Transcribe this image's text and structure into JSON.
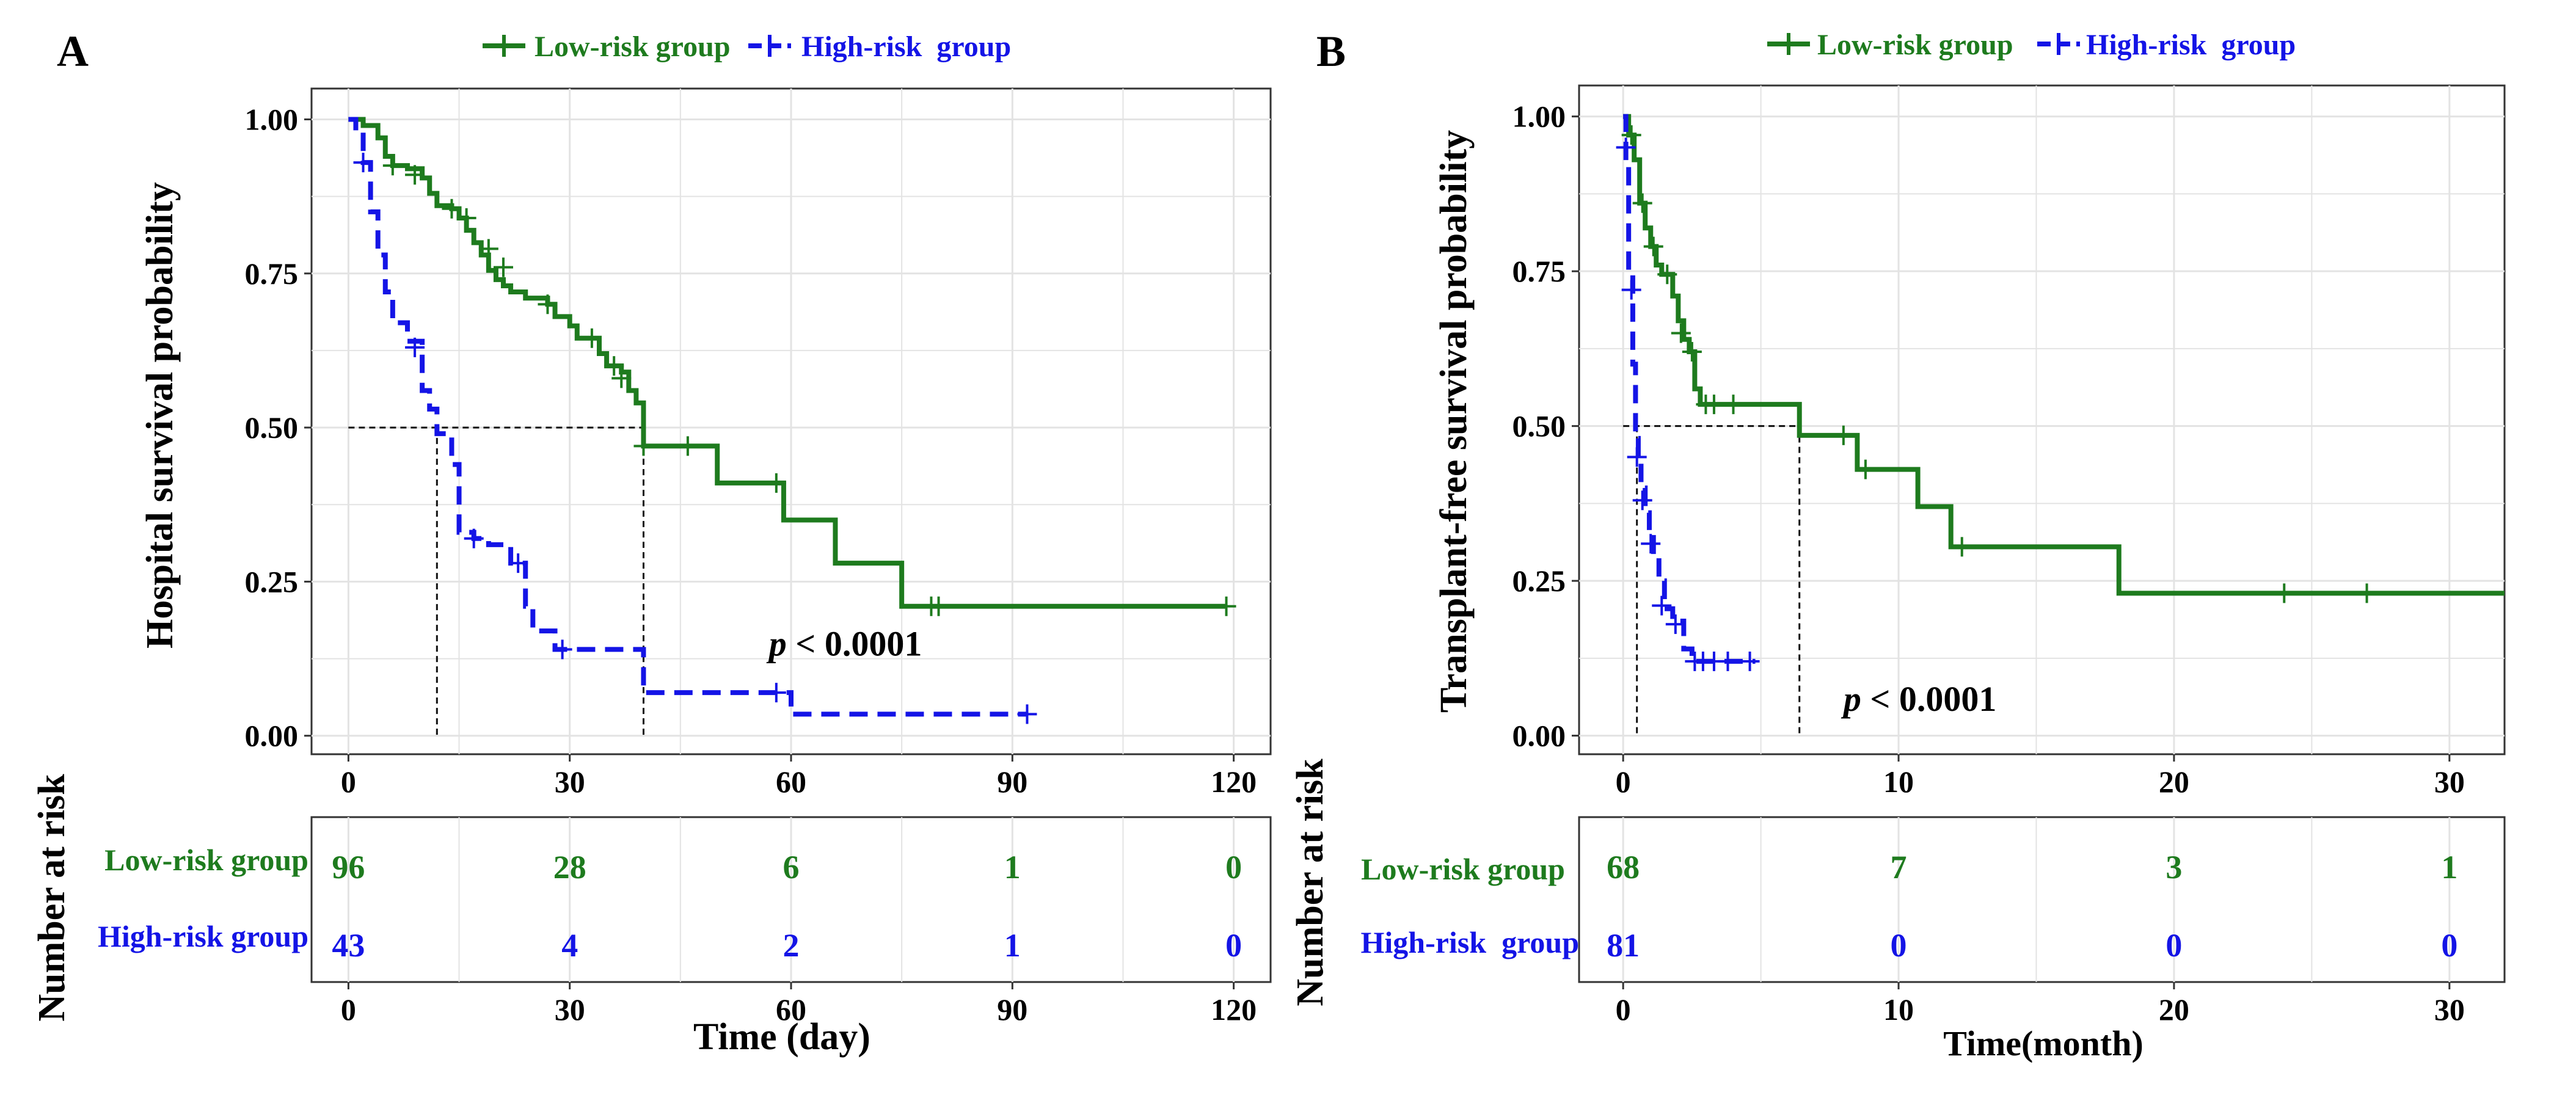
{
  "colors": {
    "low": "#1e7b1e",
    "high": "#1414e6",
    "grid": "#e3e3e3",
    "axis": "#333333",
    "ref": "#111111"
  },
  "chart_data": [
    {
      "type": "line",
      "panel_label": "A",
      "legend": [
        "Low-risk group",
        "High-risk  group"
      ],
      "ylabel": "Hospital survival probability",
      "xlabel": "Time (day)",
      "xlim": [
        -5,
        125
      ],
      "ylim": [
        -0.03,
        1.05
      ],
      "xticks": [
        0,
        30,
        60,
        90,
        120
      ],
      "yticks": [
        0.0,
        0.25,
        0.5,
        0.75,
        1.0
      ],
      "ytick_labels": [
        "0.00",
        "0.25",
        "0.50",
        "0.75",
        "1.00"
      ],
      "pvalue_prefix": "p",
      "pvalue_text": " < 0.0001",
      "pvalue_at": [
        57,
        0.13
      ],
      "medians": [
        12,
        40
      ],
      "series": [
        {
          "name": "Low-risk group",
          "style": "solid",
          "steps": [
            [
              0,
              1.0
            ],
            [
              2,
              0.99
            ],
            [
              4,
              0.97
            ],
            [
              5,
              0.94
            ],
            [
              6,
              0.925
            ],
            [
              8,
              0.92
            ],
            [
              10,
              0.905
            ],
            [
              11,
              0.88
            ],
            [
              12,
              0.86
            ],
            [
              14,
              0.855
            ],
            [
              15,
              0.84
            ],
            [
              16,
              0.82
            ],
            [
              17,
              0.8
            ],
            [
              18,
              0.78
            ],
            [
              19,
              0.755
            ],
            [
              20,
              0.74
            ],
            [
              21,
              0.73
            ],
            [
              22,
              0.72
            ],
            [
              24,
              0.71
            ],
            [
              27,
              0.7
            ],
            [
              28,
              0.68
            ],
            [
              30,
              0.665
            ],
            [
              31,
              0.645
            ],
            [
              33,
              0.645
            ],
            [
              34,
              0.62
            ],
            [
              35,
              0.6
            ],
            [
              37,
              0.59
            ],
            [
              38,
              0.56
            ],
            [
              39,
              0.54
            ],
            [
              40,
              0.47
            ],
            [
              50,
              0.41
            ],
            [
              59,
              0.35
            ],
            [
              66,
              0.28
            ],
            [
              75,
              0.21
            ],
            [
              119,
              0.21
            ]
          ],
          "censors": [
            [
              6,
              0.925
            ],
            [
              9,
              0.91
            ],
            [
              14,
              0.855
            ],
            [
              16,
              0.84
            ],
            [
              19,
              0.79
            ],
            [
              21,
              0.76
            ],
            [
              27,
              0.7
            ],
            [
              33,
              0.645
            ],
            [
              36,
              0.6
            ],
            [
              37,
              0.58
            ],
            [
              40,
              0.47
            ],
            [
              46,
              0.47
            ],
            [
              58,
              0.41
            ],
            [
              79,
              0.21
            ],
            [
              80,
              0.21
            ],
            [
              119,
              0.21
            ]
          ]
        },
        {
          "name": "High-risk  group",
          "style": "dashed",
          "steps": [
            [
              0,
              1.0
            ],
            [
              1,
              0.98
            ],
            [
              2,
              0.93
            ],
            [
              3,
              0.85
            ],
            [
              4,
              0.78
            ],
            [
              5,
              0.72
            ],
            [
              6,
              0.67
            ],
            [
              8,
              0.64
            ],
            [
              10,
              0.56
            ],
            [
              11,
              0.53
            ],
            [
              12,
              0.49
            ],
            [
              14,
              0.44
            ],
            [
              15,
              0.33
            ],
            [
              17,
              0.32
            ],
            [
              19,
              0.31
            ],
            [
              22,
              0.28
            ],
            [
              24,
              0.21
            ],
            [
              25,
              0.17
            ],
            [
              28,
              0.14
            ],
            [
              35,
              0.14
            ],
            [
              40,
              0.07
            ],
            [
              60,
              0.035
            ],
            [
              92,
              0.035
            ]
          ],
          "censors": [
            [
              2,
              0.93
            ],
            [
              9,
              0.63
            ],
            [
              17,
              0.32
            ],
            [
              23,
              0.28
            ],
            [
              29,
              0.14
            ],
            [
              58,
              0.07
            ],
            [
              92,
              0.035
            ]
          ]
        }
      ],
      "risk_table": {
        "title": "Number at risk",
        "xlabel": "Time (day)",
        "row_labels": [
          "Low-risk group",
          "High-risk group"
        ],
        "rows": [
          [
            96,
            28,
            6,
            1,
            0
          ],
          [
            43,
            4,
            2,
            1,
            0
          ]
        ],
        "times": [
          0,
          30,
          60,
          90,
          120
        ],
        "tick_labels": [
          "0",
          "30",
          "60",
          "90",
          "120"
        ]
      }
    },
    {
      "type": "line",
      "panel_label": "B",
      "legend": [
        "Low-risk group",
        "High-risk  group"
      ],
      "ylabel": "Transplant-free survival probability",
      "xlabel": "Time(month)",
      "xlim": [
        -1.6,
        32
      ],
      "ylim": [
        -0.03,
        1.05
      ],
      "xticks": [
        0,
        10,
        20,
        30
      ],
      "yticks": [
        0.0,
        0.25,
        0.5,
        0.75,
        1.0
      ],
      "ytick_labels": [
        "0.00",
        "0.25",
        "0.50",
        "0.75",
        "1.00"
      ],
      "pvalue_prefix": "p",
      "pvalue_text": " < 0.0001",
      "pvalue_at": [
        8.0,
        0.04
      ],
      "medians": [
        0.5,
        6.4
      ],
      "series": [
        {
          "name": "Low-risk group",
          "style": "solid",
          "steps": [
            [
              0,
              1.0
            ],
            [
              0.2,
              0.97
            ],
            [
              0.4,
              0.93
            ],
            [
              0.6,
              0.86
            ],
            [
              0.8,
              0.82
            ],
            [
              1.0,
              0.79
            ],
            [
              1.2,
              0.76
            ],
            [
              1.4,
              0.745
            ],
            [
              1.8,
              0.71
            ],
            [
              2.0,
              0.67
            ],
            [
              2.2,
              0.64
            ],
            [
              2.4,
              0.62
            ],
            [
              2.6,
              0.56
            ],
            [
              2.8,
              0.535
            ],
            [
              6.4,
              0.485
            ],
            [
              8.5,
              0.43
            ],
            [
              10.7,
              0.37
            ],
            [
              11.9,
              0.305
            ],
            [
              18.0,
              0.23
            ],
            [
              32,
              0.23
            ]
          ],
          "censors": [
            [
              0.3,
              0.97
            ],
            [
              0.7,
              0.86
            ],
            [
              1.1,
              0.79
            ],
            [
              1.6,
              0.745
            ],
            [
              2.1,
              0.65
            ],
            [
              2.5,
              0.62
            ],
            [
              3.0,
              0.535
            ],
            [
              3.3,
              0.535
            ],
            [
              4.0,
              0.535
            ],
            [
              8.0,
              0.485
            ],
            [
              8.8,
              0.43
            ],
            [
              12.3,
              0.305
            ],
            [
              24,
              0.23
            ],
            [
              27,
              0.23
            ]
          ]
        },
        {
          "name": "High-risk  group",
          "style": "dashed",
          "steps": [
            [
              0,
              1.0
            ],
            [
              0.1,
              0.92
            ],
            [
              0.2,
              0.75
            ],
            [
              0.35,
              0.6
            ],
            [
              0.45,
              0.48
            ],
            [
              0.55,
              0.44
            ],
            [
              0.65,
              0.4
            ],
            [
              0.8,
              0.36
            ],
            [
              0.95,
              0.32
            ],
            [
              1.1,
              0.29
            ],
            [
              1.3,
              0.25
            ],
            [
              1.5,
              0.205
            ],
            [
              1.8,
              0.185
            ],
            [
              2.2,
              0.14
            ],
            [
              2.5,
              0.12
            ],
            [
              4.8,
              0.12
            ]
          ],
          "censors": [
            [
              0.1,
              0.95
            ],
            [
              0.3,
              0.72
            ],
            [
              0.5,
              0.45
            ],
            [
              0.7,
              0.38
            ],
            [
              1.0,
              0.31
            ],
            [
              1.4,
              0.21
            ],
            [
              1.9,
              0.18
            ],
            [
              2.6,
              0.12
            ],
            [
              2.9,
              0.12
            ],
            [
              3.3,
              0.12
            ],
            [
              3.8,
              0.12
            ],
            [
              4.6,
              0.12
            ]
          ]
        }
      ],
      "risk_table": {
        "title": "Number at risk",
        "xlabel": "Time(month)",
        "row_labels": [
          "Low-risk group",
          "High-risk  group"
        ],
        "rows": [
          [
            68,
            7,
            3,
            1
          ],
          [
            81,
            0,
            0,
            0
          ]
        ],
        "times": [
          0,
          10,
          20,
          30
        ],
        "tick_labels": [
          "0",
          "10",
          "20",
          "30"
        ]
      }
    }
  ]
}
